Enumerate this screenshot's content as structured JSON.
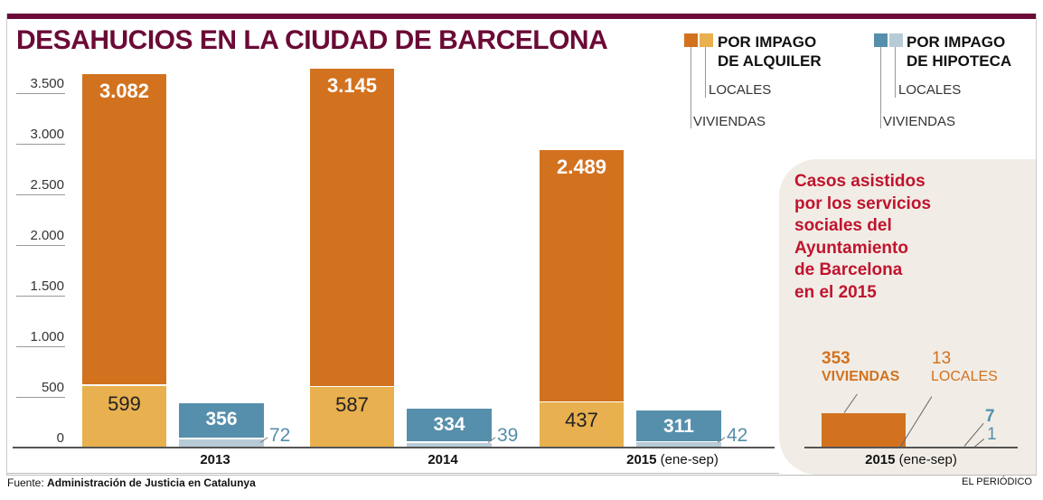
{
  "title": "DESAHUCIOS EN LA CIUDAD DE BARCELONA",
  "colors": {
    "title": "#6b0a36",
    "alquiler_viviendas": "#d2721f",
    "alquiler_locales": "#e8b04e",
    "hipoteca_viviendas": "#568fab",
    "hipoteca_locales": "#b7cbd7",
    "panel_title": "#c0142e",
    "panel_bg": "#f1ede6"
  },
  "legend": {
    "alquiler": {
      "title_line1": "POR IMPAGO",
      "title_line2": "DE ALQUILER",
      "locales": "LOCALES",
      "viviendas": "VIVIENDAS"
    },
    "hipoteca": {
      "title_line1": "POR IMPAGO",
      "title_line2": "DE HIPOTECA",
      "locales": "LOCALES",
      "viviendas": "VIVIENDAS"
    }
  },
  "chart_data": [
    {
      "type": "bar",
      "stacked": true,
      "title": "DESAHUCIOS EN LA CIUDAD DE BARCELONA",
      "categories": [
        "2013",
        "2014",
        "2015"
      ],
      "category_suffixes": [
        "",
        "",
        "(ene-sep)"
      ],
      "ylim": [
        0,
        3500
      ],
      "yticks": [
        0,
        500,
        1000,
        1500,
        2000,
        2500,
        3000,
        3500
      ],
      "ytick_labels": [
        "0",
        "500",
        "1.000",
        "1.500",
        "2.000",
        "2.500",
        "3.000",
        "3.500"
      ],
      "grid": false,
      "series": [
        {
          "name": "Alquiler viviendas",
          "group": "alquiler",
          "values": [
            3082,
            3145,
            2489
          ],
          "labels": [
            "3.082",
            "3.145",
            "2.489"
          ]
        },
        {
          "name": "Alquiler locales",
          "group": "alquiler",
          "values": [
            599,
            587,
            437
          ],
          "labels": [
            "599",
            "587",
            "437"
          ]
        },
        {
          "name": "Hipoteca viviendas",
          "group": "hipoteca",
          "values": [
            356,
            334,
            311
          ],
          "labels": [
            "356",
            "334",
            "311"
          ]
        },
        {
          "name": "Hipoteca locales",
          "group": "hipoteca",
          "values": [
            72,
            39,
            42
          ],
          "labels": [
            "72",
            "39",
            "42"
          ]
        }
      ]
    },
    {
      "type": "bar",
      "title_lines": [
        "Casos asistidos",
        "por los servicios",
        "sociales del",
        "Ayuntamiento",
        "de Barcelona",
        "en el 2015"
      ],
      "category": "2015",
      "category_suffix": "(ene-sep)",
      "series": [
        {
          "name": "Alquiler viviendas",
          "value": 353,
          "label": "353",
          "sublabel": "VIVIENDAS"
        },
        {
          "name": "Alquiler locales",
          "value": 13,
          "label": "13",
          "sublabel": "LOCALES"
        },
        {
          "name": "Hipoteca viviendas",
          "value": 7,
          "label": "7"
        },
        {
          "name": "Hipoteca locales",
          "value": 1,
          "label": "1"
        }
      ]
    }
  ],
  "footer": {
    "source_prefix": "Fuente:",
    "source": "Administración de Justicia en Catalunya",
    "brand": "EL PERIÓDICO"
  }
}
